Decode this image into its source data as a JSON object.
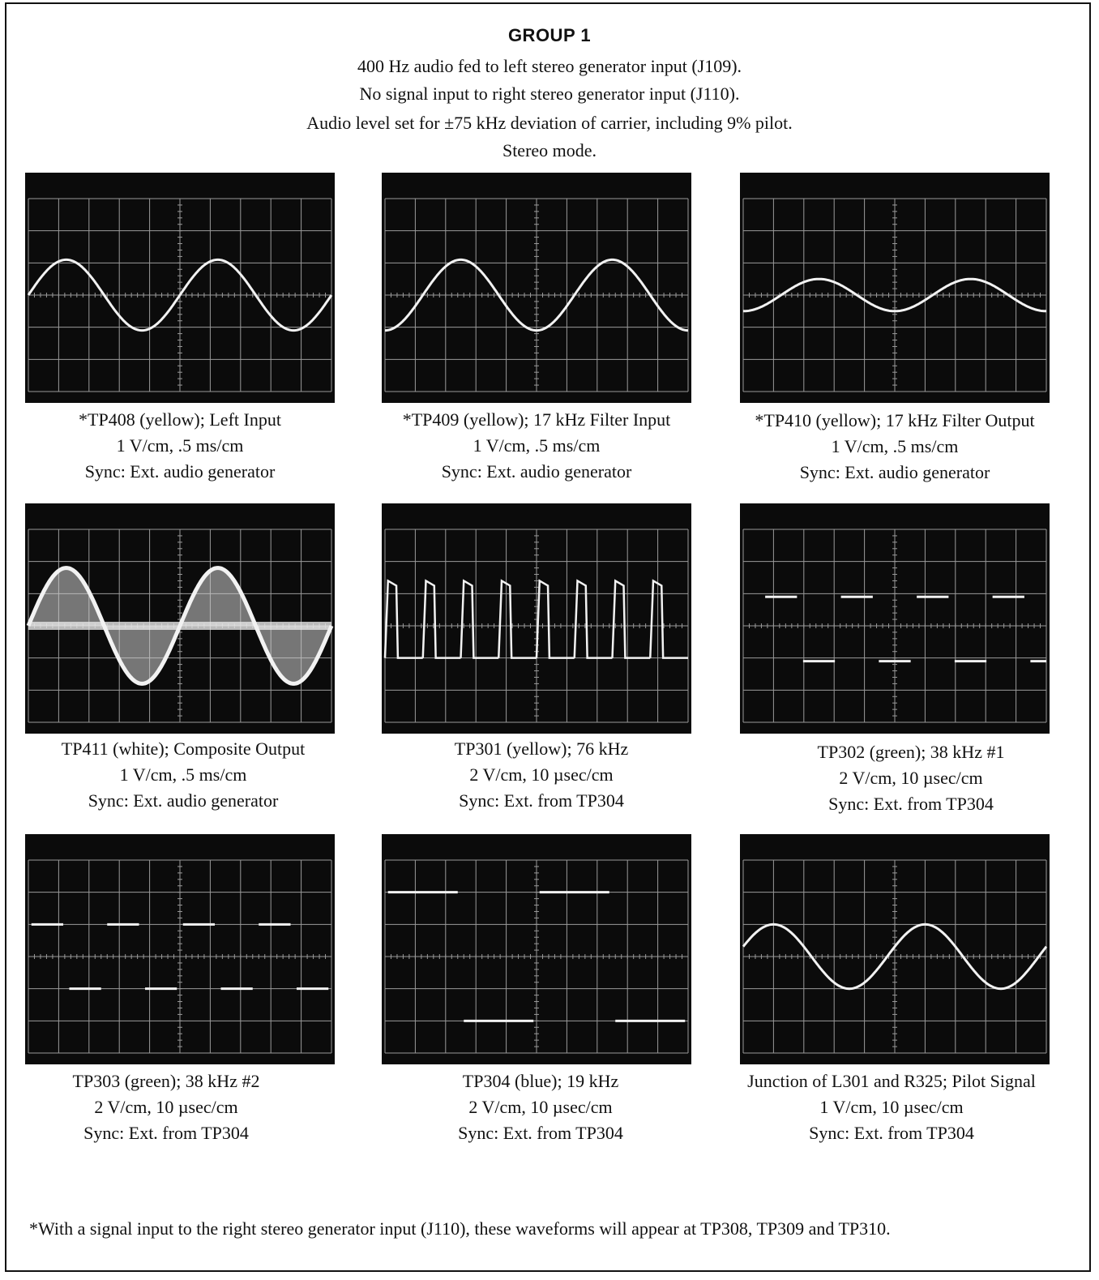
{
  "header": {
    "title": "GROUP 1",
    "lines": [
      "400 Hz audio fed to left stereo generator input (J109).",
      "No signal input to right stereo generator input (J110).",
      "Audio level set for ±75 kHz deviation of carrier, including 9% pilot.",
      "Stereo mode."
    ]
  },
  "waveforms": [
    {
      "caption": [
        "*TP408 (yellow); Left Input",
        "1 V/cm, .5 ms/cm",
        "Sync: Ext. audio generator"
      ],
      "trace": {
        "kind": "sine",
        "cycles": 2.0,
        "amplitude_cm": 1.1,
        "phase": 0.0
      }
    },
    {
      "caption": [
        "*TP409 (yellow); 17 kHz Filter Input",
        "1 V/cm, .5 ms/cm",
        "Sync: Ext. audio generator"
      ],
      "trace": {
        "kind": "sine",
        "cycles": 2.0,
        "amplitude_cm": 1.1,
        "phase": -0.25
      }
    },
    {
      "caption": [
        "*TP410 (yellow); 17 kHz Filter Output",
        "1 V/cm, .5 ms/cm",
        "Sync: Ext. audio generator"
      ],
      "trace": {
        "kind": "sine",
        "cycles": 2.0,
        "amplitude_cm": 0.5,
        "phase": -0.25
      }
    },
    {
      "caption": [
        "TP411 (white); Composite Output",
        "1 V/cm, .5 ms/cm",
        "Sync: Ext. audio generator"
      ],
      "trace": {
        "kind": "composite",
        "cycles": 2.0,
        "amplitude_cm": 1.8,
        "phase": 0.0
      }
    },
    {
      "caption": [
        "TP301 (yellow); 76 kHz",
        "2 V/cm, 10 µsec/cm",
        "Sync: Ext. from TP304"
      ],
      "trace": {
        "kind": "pulse",
        "cycles": 8,
        "high_cm": 1.4,
        "low_cm": -1.0,
        "duty": 0.3
      }
    },
    {
      "caption": [
        "TP302 (green); 38 kHz #1",
        "2 V/cm, 10 µsec/cm",
        "Sync: Ext. from TP304"
      ],
      "trace": {
        "kind": "square",
        "cycles": 4,
        "high_cm": 0.9,
        "low_cm": -1.1,
        "phase": 0.5
      }
    },
    {
      "caption": [
        "TP303 (green); 38 kHz #2",
        "2 V/cm, 10 µsec/cm",
        "Sync: Ext. from TP304"
      ],
      "trace": {
        "kind": "square",
        "cycles": 4,
        "high_cm": 1.0,
        "low_cm": -1.0,
        "phase": 0.0
      }
    },
    {
      "caption": [
        "TP304 (blue); 19 kHz",
        "2 V/cm, 10 µsec/cm",
        "Sync: Ext. from TP304"
      ],
      "trace": {
        "kind": "square",
        "cycles": 2,
        "high_cm": 2.0,
        "low_cm": -2.0,
        "phase": 0.0
      }
    },
    {
      "caption": [
        "Junction of L301 and R325; Pilot Signal",
        "1 V/cm, 10 µsec/cm",
        "Sync: Ext. from TP304"
      ],
      "trace": {
        "kind": "sine",
        "cycles": 2.0,
        "amplitude_cm": 1.0,
        "phase": 0.05
      }
    }
  ],
  "footnote": "*With a signal input to the right stereo generator input (J110), these waveforms will appear at TP308, TP309 and TP310.",
  "colors": {
    "screen": "#0b0b0b",
    "trace": "#f2f2f2",
    "graticule": "#9a9a9a"
  }
}
